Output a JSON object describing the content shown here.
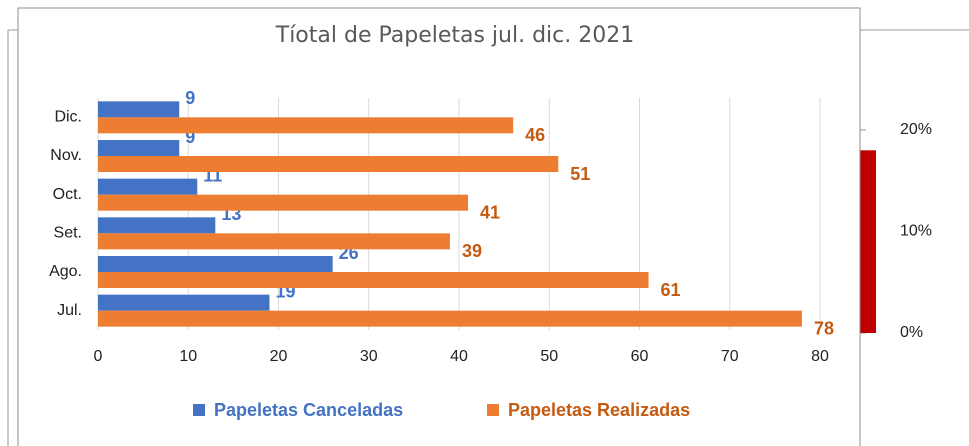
{
  "chart_data": [
    {
      "type": "hbar",
      "title": "Tíotal de Papeletas jul. dic. 2021",
      "categories": [
        "Jul.",
        "Ago.",
        "Set.",
        "Oct.",
        "Nov.",
        "Dic."
      ],
      "series": [
        {
          "name": "Papeletas Canceladas",
          "color": "#4472c4",
          "label_color": "#4472c4",
          "values": [
            19,
            26,
            13,
            11,
            9,
            9
          ]
        },
        {
          "name": "Papeletas Realizadas",
          "color": "#ed7d31",
          "label_color": "#c55a11",
          "values": [
            78,
            61,
            39,
            41,
            51,
            46
          ]
        }
      ],
      "xlim": [
        0,
        80
      ],
      "xticks": [
        0,
        10,
        20,
        30,
        40,
        50,
        60,
        70,
        80
      ],
      "grid": true,
      "legend": "bottom"
    },
    {
      "type": "bar",
      "values": [
        18
      ],
      "color": "#c00000",
      "ylim": [
        0,
        20
      ],
      "yticks": [
        {
          "value": 0,
          "label": "0%"
        },
        {
          "value": 10,
          "label": "10%"
        },
        {
          "value": 20,
          "label": "20%"
        }
      ]
    }
  ]
}
